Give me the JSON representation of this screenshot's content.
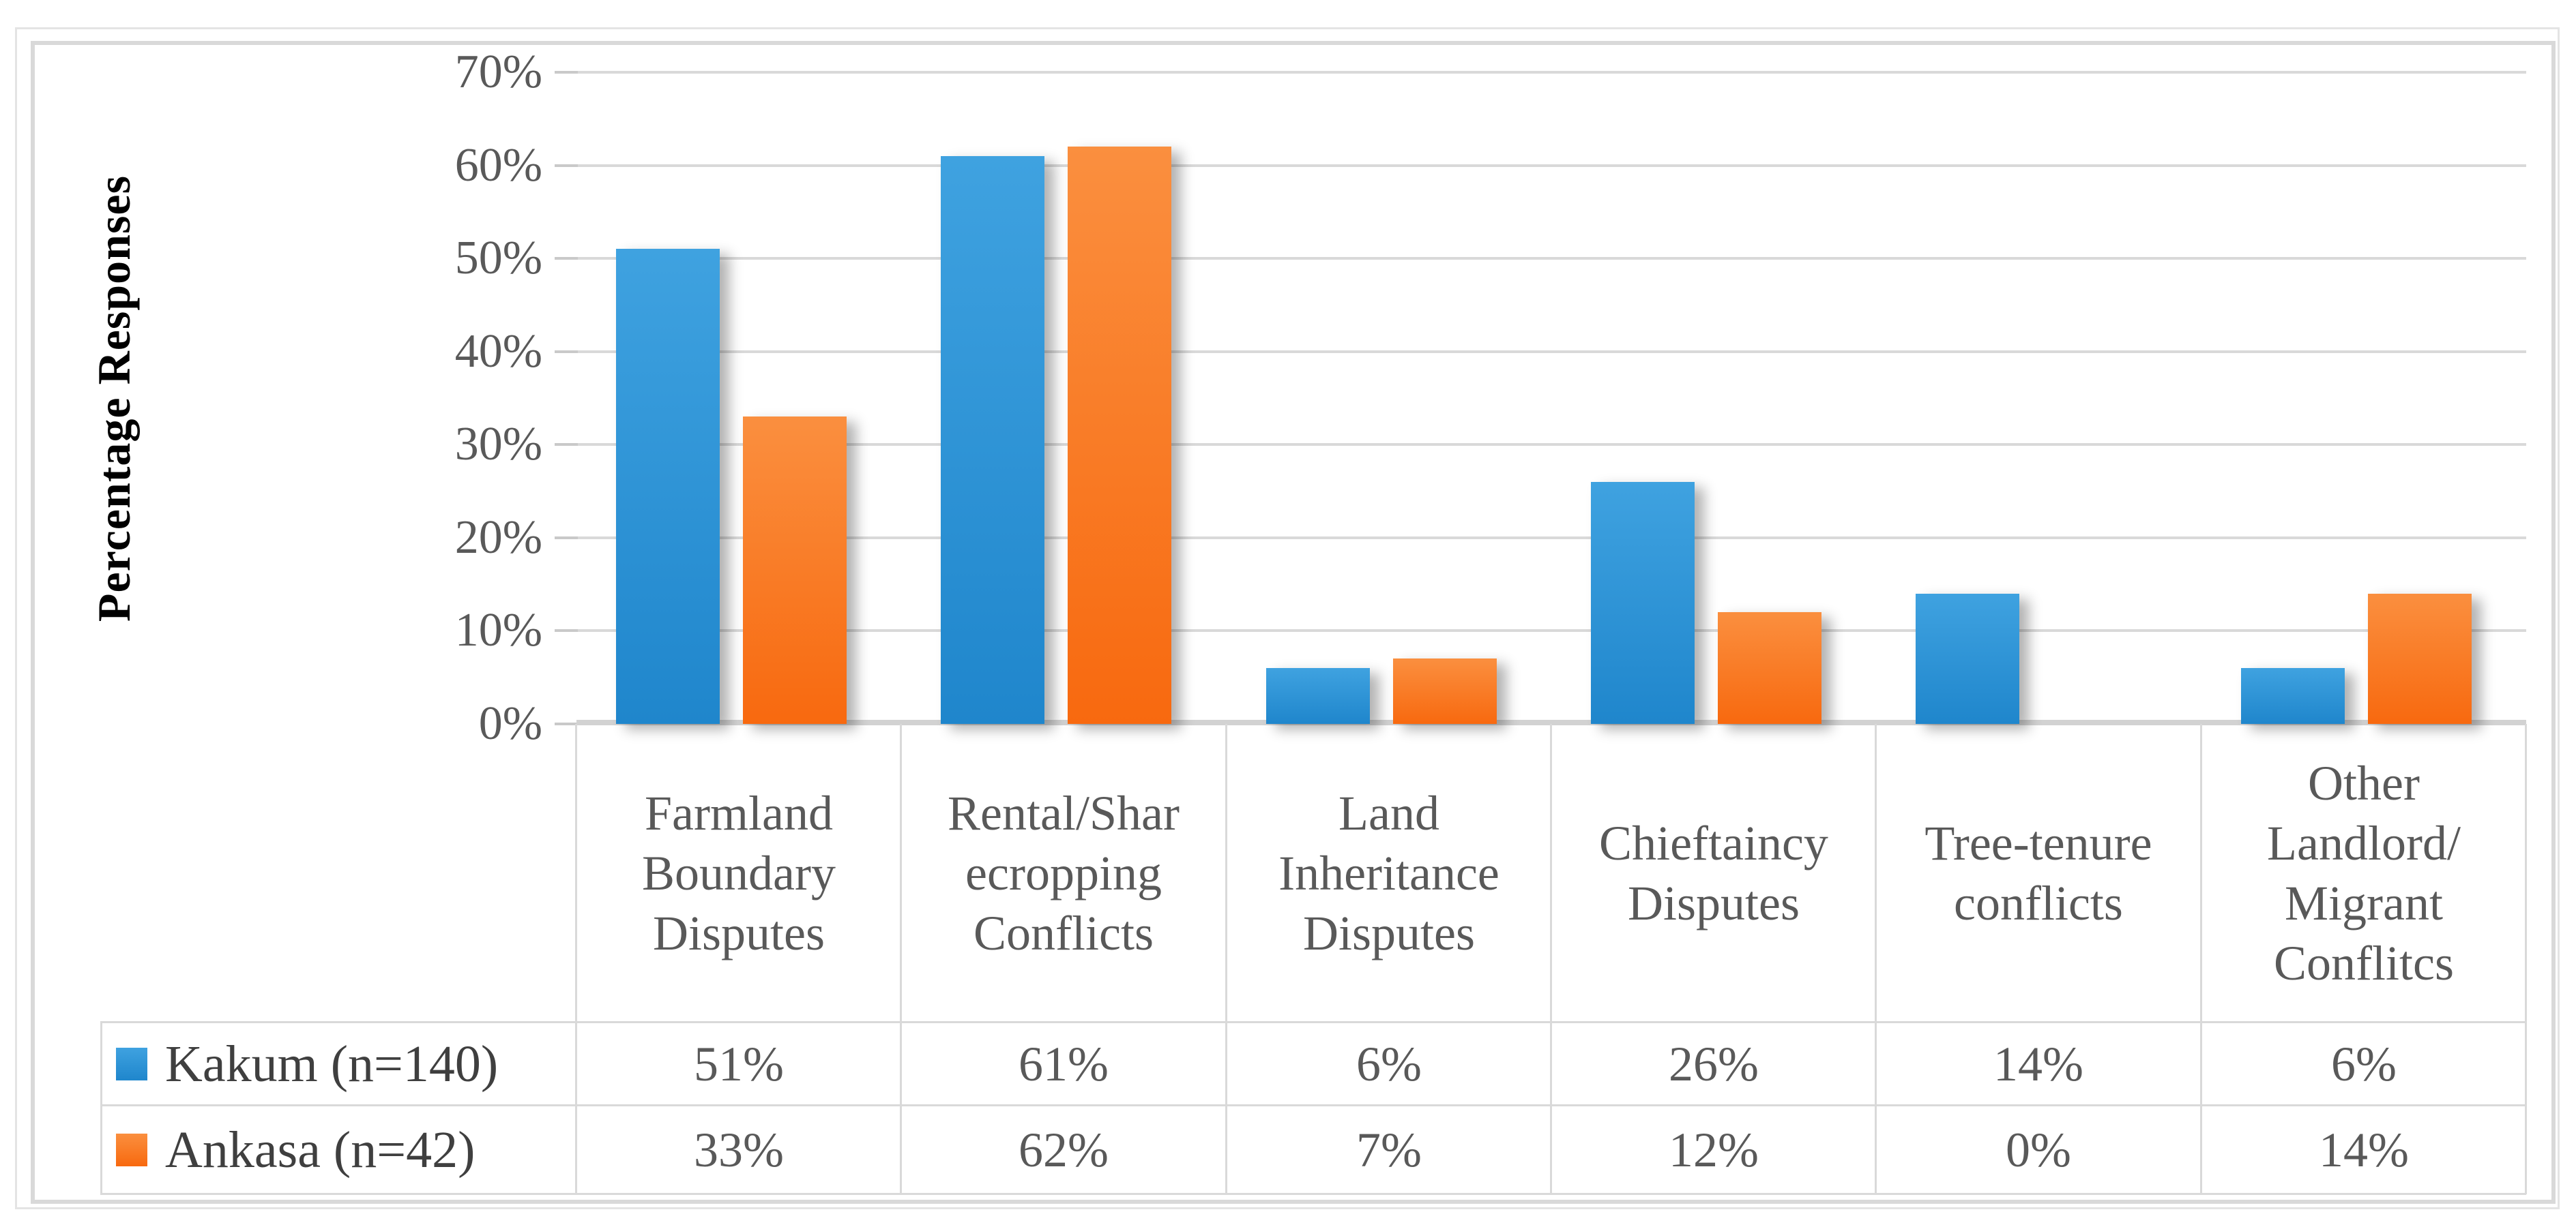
{
  "figure": {
    "y_axis_title": "Percentage Responses",
    "y_tick_labels": [
      "70%",
      "60%",
      "50%",
      "40%",
      "30%",
      "20%",
      "10%",
      "0%"
    ]
  },
  "legend": {
    "items": [
      {
        "label": "Kakum (n=140)",
        "swatch": "blue-square"
      },
      {
        "label": "Ankasa (n=42)",
        "swatch": "orange-square"
      }
    ]
  },
  "chart_data": {
    "type": "bar",
    "title": "",
    "xlabel": "",
    "ylabel": "Percentage Responses",
    "ylim": [
      0,
      70
    ],
    "ytick_step": 10,
    "grid": true,
    "legend_position": "data-table-left",
    "categories": [
      "Farmland Boundary Disputes",
      "Rental/Sharecropping Conflicts",
      "Land Inheritance Disputes",
      "Chieftaincy Disputes",
      "Tree-tenure conflicts",
      "Other Landlord/Migrant Conflitcs"
    ],
    "categories_multiline": [
      [
        "Farmland",
        "Boundary",
        "Disputes"
      ],
      [
        "Rental/Shar",
        "ecropping",
        "Conflicts"
      ],
      [
        "Land",
        "Inheritance",
        "Disputes"
      ],
      [
        "Chieftaincy",
        "Disputes"
      ],
      [
        "Tree-tenure",
        "conflicts"
      ],
      [
        "Other",
        "Landlord/",
        "Migrant",
        "Conflitcs"
      ]
    ],
    "series": [
      {
        "name": "Kakum (n=140)",
        "values": [
          51,
          61,
          6,
          26,
          14,
          6
        ],
        "display_values": [
          "51%",
          "61%",
          "6%",
          "26%",
          "14%",
          "6%"
        ],
        "color_top": "#3fa2e0",
        "color_bottom": "#1f86cc"
      },
      {
        "name": "Ankasa (n=42)",
        "values": [
          33,
          62,
          7,
          12,
          0,
          14
        ],
        "display_values": [
          "33%",
          "62%",
          "7%",
          "12%",
          "0%",
          "14%"
        ],
        "color_top": "#fa8f3f",
        "color_bottom": "#f8690f"
      }
    ]
  },
  "colors": {
    "gridline": "#d9d9d9",
    "axis_line": "#d2d2d2",
    "tick_mark": "#c9c9c9",
    "table_border": "#d9d9d9",
    "axis_text": "#595959",
    "table_text": "#595959",
    "legend_text": "#3f3f3f"
  }
}
